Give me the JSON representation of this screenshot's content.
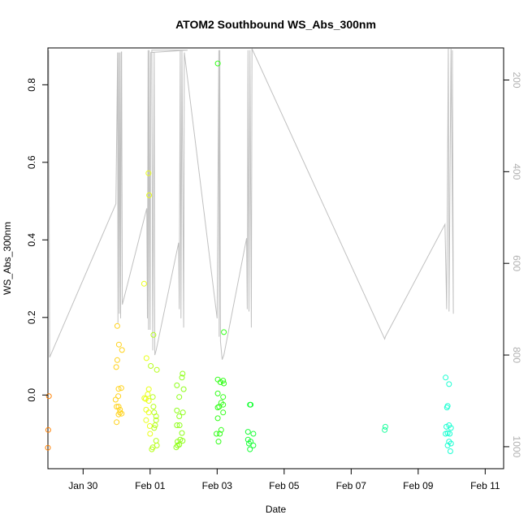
{
  "chart_data": {
    "type": "scatter",
    "title": "ATOM2 Southbound WS_Abs_300nm",
    "xlabel": "Date",
    "ylabel": "WS_Abs_300nm",
    "x_ticks": [
      "Jan 30",
      "Feb 01",
      "Feb 03",
      "Feb 05",
      "Feb 07",
      "Feb 09",
      "Feb 11"
    ],
    "x_tick_values": [
      1.0,
      3.0,
      5.0,
      7.0,
      9.0,
      11.0,
      13.0
    ],
    "xlim": [
      -0.05,
      13.55
    ],
    "y_ticks": [
      "0.0",
      "0.2",
      "0.4",
      "0.6",
      "0.8"
    ],
    "y_tick_values": [
      0.0,
      0.2,
      0.4,
      0.6,
      0.8
    ],
    "ylim": [
      -0.19,
      0.895
    ],
    "y2_ticks": [
      "200",
      "400",
      "600",
      "800",
      "1000"
    ],
    "y2_tick_values": [
      200,
      400,
      600,
      800,
      1000
    ],
    "y2lim": [
      1048,
      130
    ],
    "grid": false,
    "legend": "none",
    "point_style": "open-circle",
    "series": [
      {
        "color": "#ff8000",
        "points": [
          [
            -0.02,
            -0.003
          ],
          [
            -0.04,
            -0.09
          ],
          [
            -0.05,
            -0.136
          ]
        ]
      },
      {
        "color": "#ffd21a",
        "points": [
          [
            2.02,
            0.178
          ],
          [
            2.07,
            0.13
          ],
          [
            2.16,
            0.116
          ],
          [
            2.02,
            0.09
          ],
          [
            1.99,
            0.072
          ],
          [
            2.06,
            0.016
          ],
          [
            2.14,
            0.018
          ],
          [
            1.97,
            -0.012
          ],
          [
            2.05,
            -0.003
          ],
          [
            2.06,
            -0.03
          ],
          [
            2.1,
            -0.038
          ],
          [
            2.0,
            -0.03
          ],
          [
            2.1,
            -0.045
          ],
          [
            2.15,
            -0.048
          ],
          [
            2.06,
            -0.05
          ],
          [
            2.0,
            -0.07
          ]
        ]
      },
      {
        "color": "#eaff1a",
        "points": [
          [
            2.82,
            0.287
          ],
          [
            2.95,
            0.572
          ],
          [
            2.97,
            0.515
          ],
          [
            2.89,
            0.095
          ],
          [
            2.96,
            0.015
          ],
          [
            2.93,
            0.002
          ],
          [
            2.83,
            -0.008
          ],
          [
            2.87,
            -0.01
          ],
          [
            2.96,
            -0.015
          ],
          [
            2.88,
            -0.038
          ],
          [
            2.96,
            -0.045
          ],
          [
            2.88,
            -0.065
          ],
          [
            2.99,
            -0.08
          ],
          [
            3.0,
            -0.1
          ]
        ]
      },
      {
        "color": "#b6ff1a",
        "points": [
          [
            3.1,
            0.155
          ],
          [
            3.02,
            0.075
          ],
          [
            3.2,
            0.065
          ],
          [
            3.08,
            -0.005
          ],
          [
            3.1,
            -0.03
          ],
          [
            3.12,
            -0.045
          ],
          [
            3.18,
            -0.055
          ],
          [
            3.18,
            -0.065
          ],
          [
            3.15,
            -0.078
          ],
          [
            3.12,
            -0.085
          ],
          [
            3.18,
            -0.118
          ],
          [
            3.2,
            -0.13
          ],
          [
            3.08,
            -0.135
          ],
          [
            3.05,
            -0.14
          ]
        ]
      },
      {
        "color": "#8fff1a",
        "points": [
          [
            3.97,
            0.055
          ],
          [
            3.95,
            0.045
          ],
          [
            3.8,
            0.025
          ],
          [
            4.0,
            0.015
          ],
          [
            3.87,
            -0.005
          ],
          [
            3.8,
            -0.04
          ],
          [
            3.98,
            -0.045
          ],
          [
            3.87,
            -0.055
          ],
          [
            3.8,
            -0.078
          ],
          [
            3.88,
            -0.078
          ],
          [
            3.95,
            -0.098
          ],
          [
            3.9,
            -0.115
          ],
          [
            3.97,
            -0.118
          ],
          [
            3.82,
            -0.12
          ],
          [
            3.87,
            -0.128
          ],
          [
            3.82,
            -0.13
          ],
          [
            3.78,
            -0.135
          ]
        ]
      },
      {
        "color": "#33ff1a",
        "points": [
          [
            5.02,
            0.855
          ],
          [
            5.2,
            0.162
          ],
          [
            5.02,
            0.04
          ],
          [
            5.18,
            0.037
          ],
          [
            5.1,
            0.033
          ],
          [
            5.2,
            0.03
          ],
          [
            5.02,
            0.004
          ],
          [
            5.18,
            -0.005
          ],
          [
            5.12,
            -0.02
          ],
          [
            5.18,
            -0.025
          ],
          [
            5.06,
            -0.03
          ],
          [
            5.02,
            -0.032
          ],
          [
            5.18,
            -0.045
          ],
          [
            5.02,
            -0.06
          ],
          [
            5.12,
            -0.09
          ],
          [
            5.08,
            -0.1
          ],
          [
            4.98,
            -0.1
          ],
          [
            5.04,
            -0.12
          ]
        ]
      },
      {
        "color": "#1aff38",
        "points": [
          [
            5.98,
            -0.025
          ],
          [
            6.0,
            -0.025
          ],
          [
            5.92,
            -0.095
          ],
          [
            6.08,
            -0.1
          ],
          [
            5.92,
            -0.115
          ],
          [
            6.0,
            -0.12
          ],
          [
            5.95,
            -0.125
          ],
          [
            6.08,
            -0.13
          ],
          [
            5.98,
            -0.14
          ]
        ]
      },
      {
        "color": "#1aff9d",
        "points": [
          [
            10.02,
            -0.082
          ],
          [
            10.0,
            -0.09
          ]
        ]
      },
      {
        "color": "#1affd2",
        "points": [
          [
            11.82,
            0.045
          ],
          [
            11.92,
            0.028
          ],
          [
            11.88,
            -0.028
          ],
          [
            11.86,
            -0.032
          ],
          [
            11.92,
            -0.078
          ],
          [
            11.84,
            -0.082
          ],
          [
            11.98,
            -0.085
          ],
          [
            11.88,
            -0.098
          ],
          [
            11.94,
            -0.1
          ],
          [
            11.82,
            -0.1
          ],
          [
            11.92,
            -0.12
          ],
          [
            11.98,
            -0.125
          ],
          [
            11.88,
            -0.13
          ],
          [
            11.96,
            -0.145
          ]
        ]
      }
    ],
    "altitude_line": {
      "axis": "y2",
      "color": "#c0c0c0",
      "points": [
        [
          -0.06,
          135
        ],
        [
          0.0,
          805
        ],
        [
          1.98,
          470
        ],
        [
          2.03,
          140
        ],
        [
          2.04,
          730
        ],
        [
          2.06,
          140
        ],
        [
          2.08,
          710
        ],
        [
          2.1,
          140
        ],
        [
          2.12,
          720
        ],
        [
          2.14,
          140
        ],
        [
          2.15,
          138
        ],
        [
          2.17,
          690
        ],
        [
          2.9,
          480
        ],
        [
          2.92,
          720
        ],
        [
          2.94,
          135
        ],
        [
          2.95,
          745
        ],
        [
          2.97,
          135
        ],
        [
          3.0,
          745
        ],
        [
          3.02,
          140
        ],
        [
          4.12,
          135
        ],
        [
          3.05,
          135
        ],
        [
          3.08,
          790
        ],
        [
          3.12,
          140
        ],
        [
          3.14,
          800
        ],
        [
          3.18,
          790
        ],
        [
          3.85,
          555
        ],
        [
          3.87,
          700
        ],
        [
          3.9,
          135
        ],
        [
          3.92,
          720
        ],
        [
          3.95,
          135
        ],
        [
          4.0,
          740
        ],
        [
          4.02,
          140
        ],
        [
          5.0,
          720
        ],
        [
          5.05,
          135
        ],
        [
          5.06,
          760
        ],
        [
          5.08,
          135
        ],
        [
          5.1,
          770
        ],
        [
          5.15,
          810
        ],
        [
          5.2,
          800
        ],
        [
          5.88,
          545
        ],
        [
          5.9,
          700
        ],
        [
          5.92,
          135
        ],
        [
          5.95,
          705
        ],
        [
          5.98,
          135
        ],
        [
          6.02,
          740
        ],
        [
          6.04,
          130
        ],
        [
          10.0,
          765
        ],
        [
          10.02,
          760
        ],
        [
          11.8,
          515
        ],
        [
          11.85,
          700
        ],
        [
          11.9,
          130
        ],
        [
          11.92,
          705
        ],
        [
          11.98,
          130
        ],
        [
          12.05,
          710
        ],
        [
          12.02,
          135
        ]
      ]
    }
  }
}
